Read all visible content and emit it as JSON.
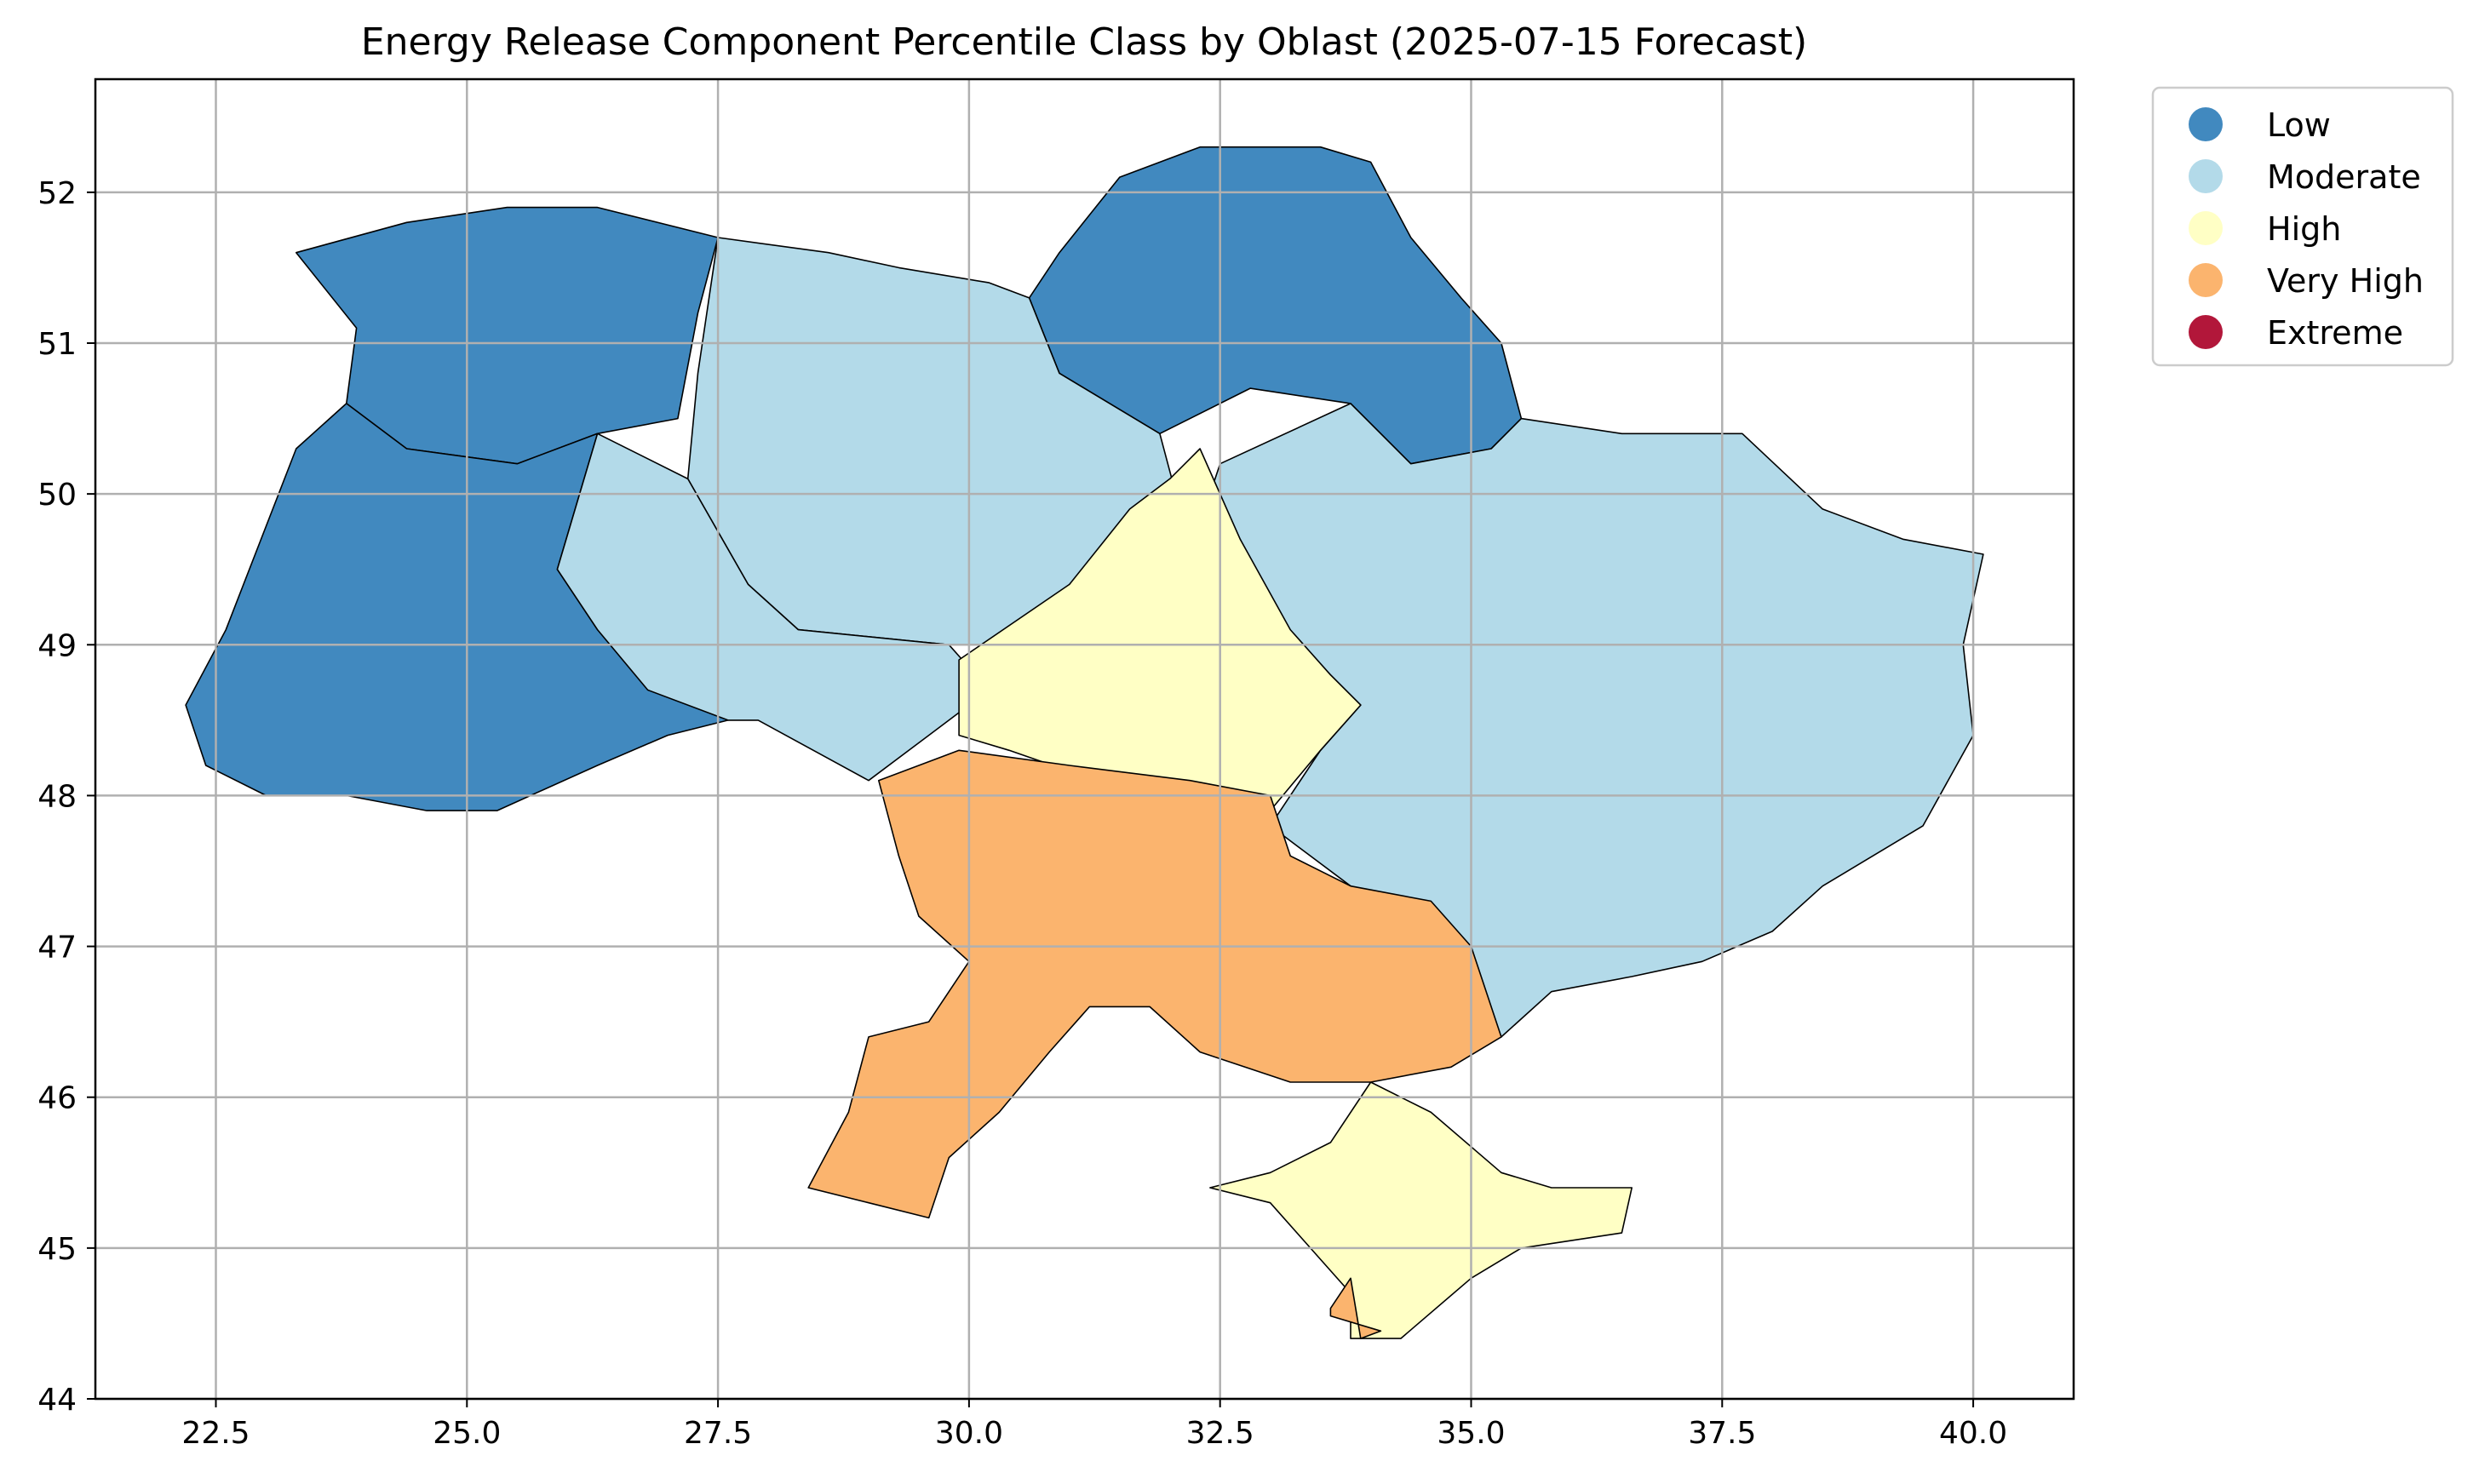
{
  "title": "Energy Release Component Percentile Class by Oblast (2025-07-15 Forecast)",
  "colors": {
    "Low": "#4189bf",
    "Moderate": "#b3dae9",
    "High": "#ffffc5",
    "Very High": "#fbb46e",
    "Extreme": "#b2173a"
  },
  "legend": {
    "placement": "outside-top-right",
    "entries": [
      "Low",
      "Moderate",
      "High",
      "Very High",
      "Extreme"
    ]
  },
  "chart_data": {
    "type": "choropleth",
    "title": "Energy Release Component Percentile Class by Oblast (2025-07-15 Forecast)",
    "xlim": [
      21.3,
      41.0
    ],
    "ylim": [
      44.0,
      52.75
    ],
    "xticks": [
      "22.5",
      "25.0",
      "27.5",
      "30.0",
      "32.5",
      "35.0",
      "37.5",
      "40.0"
    ],
    "yticks": [
      "44",
      "45",
      "46",
      "47",
      "48",
      "49",
      "50",
      "51",
      "52"
    ],
    "grid": true,
    "classes": [
      "Low",
      "Moderate",
      "High",
      "Very High",
      "Extreme"
    ],
    "regions": [
      {
        "class": "Low",
        "coords": [
          [
            23.3,
            51.6
          ],
          [
            24.4,
            51.8
          ],
          [
            25.4,
            51.9
          ],
          [
            26.3,
            51.9
          ],
          [
            27.5,
            51.7
          ],
          [
            27.3,
            51.2
          ],
          [
            27.1,
            50.5
          ],
          [
            26.3,
            50.4
          ],
          [
            25.5,
            50.2
          ],
          [
            24.4,
            50.3
          ],
          [
            23.8,
            50.6
          ],
          [
            23.9,
            51.1
          ]
        ]
      },
      {
        "class": "Low",
        "coords": [
          [
            22.2,
            48.6
          ],
          [
            22.6,
            49.1
          ],
          [
            23.3,
            50.3
          ],
          [
            23.8,
            50.6
          ],
          [
            24.4,
            50.3
          ],
          [
            25.5,
            50.2
          ],
          [
            26.3,
            50.4
          ],
          [
            25.9,
            49.5
          ],
          [
            26.3,
            49.1
          ],
          [
            27.6,
            48.5
          ],
          [
            27.0,
            48.4
          ],
          [
            26.3,
            48.2
          ],
          [
            25.3,
            47.9
          ],
          [
            24.6,
            47.9
          ],
          [
            23.8,
            48.0
          ],
          [
            23.0,
            48.0
          ],
          [
            22.4,
            48.2
          ]
        ]
      },
      {
        "class": "Low",
        "coords": [
          [
            30.6,
            51.3
          ],
          [
            30.9,
            51.6
          ],
          [
            31.5,
            52.1
          ],
          [
            32.3,
            52.3
          ],
          [
            33.5,
            52.3
          ],
          [
            34.0,
            52.2
          ],
          [
            34.4,
            51.7
          ],
          [
            34.9,
            51.3
          ],
          [
            35.3,
            51.0
          ],
          [
            35.5,
            50.5
          ],
          [
            35.2,
            50.3
          ],
          [
            34.4,
            50.2
          ],
          [
            33.8,
            50.6
          ],
          [
            32.8,
            50.7
          ],
          [
            31.9,
            50.4
          ],
          [
            30.9,
            50.8
          ]
        ]
      },
      {
        "class": "Moderate",
        "coords": [
          [
            27.5,
            51.7
          ],
          [
            28.6,
            51.6
          ],
          [
            29.3,
            51.5
          ],
          [
            30.2,
            51.4
          ],
          [
            30.6,
            51.3
          ],
          [
            30.9,
            50.8
          ],
          [
            31.9,
            50.4
          ],
          [
            32.1,
            49.9
          ],
          [
            32.2,
            49.6
          ],
          [
            32.5,
            49.2
          ],
          [
            31.3,
            49.0
          ],
          [
            29.8,
            49.0
          ],
          [
            28.3,
            49.1
          ],
          [
            27.8,
            49.4
          ],
          [
            27.2,
            50.1
          ],
          [
            27.3,
            50.8
          ]
        ]
      },
      {
        "class": "Moderate",
        "coords": [
          [
            26.3,
            50.4
          ],
          [
            27.2,
            50.1
          ],
          [
            27.8,
            49.4
          ],
          [
            28.3,
            49.1
          ],
          [
            29.8,
            49.0
          ],
          [
            30.2,
            48.7
          ],
          [
            29.6,
            48.4
          ],
          [
            29.0,
            48.1
          ],
          [
            27.9,
            48.5
          ],
          [
            27.6,
            48.5
          ],
          [
            26.8,
            48.7
          ],
          [
            26.3,
            49.1
          ],
          [
            25.9,
            49.5
          ]
        ]
      },
      {
        "class": "Moderate",
        "coords": [
          [
            32.5,
            50.2
          ],
          [
            33.8,
            50.6
          ],
          [
            34.4,
            50.2
          ],
          [
            35.2,
            50.3
          ],
          [
            35.5,
            50.5
          ],
          [
            36.5,
            50.4
          ],
          [
            37.7,
            50.4
          ],
          [
            38.5,
            49.9
          ],
          [
            39.3,
            49.7
          ],
          [
            40.1,
            49.6
          ],
          [
            39.9,
            49.0
          ],
          [
            40.0,
            48.4
          ],
          [
            39.5,
            47.8
          ],
          [
            38.5,
            47.4
          ],
          [
            38.0,
            47.1
          ],
          [
            37.3,
            46.9
          ],
          [
            36.6,
            46.8
          ],
          [
            35.8,
            46.7
          ],
          [
            35.3,
            46.4
          ],
          [
            35.0,
            46.9
          ],
          [
            34.2,
            47.2
          ],
          [
            33.8,
            47.4
          ],
          [
            33.0,
            47.8
          ],
          [
            33.5,
            48.3
          ],
          [
            33.9,
            48.6
          ],
          [
            33.0,
            49.2
          ],
          [
            32.5,
            49.2
          ],
          [
            32.2,
            49.6
          ]
        ]
      },
      {
        "class": "High",
        "coords": [
          [
            29.9,
            48.9
          ],
          [
            31.0,
            49.4
          ],
          [
            31.6,
            49.9
          ],
          [
            32.0,
            50.1
          ],
          [
            32.3,
            50.3
          ],
          [
            32.7,
            49.7
          ],
          [
            33.2,
            49.1
          ],
          [
            33.6,
            48.8
          ],
          [
            33.9,
            48.6
          ],
          [
            33.5,
            48.3
          ],
          [
            33.0,
            47.9
          ],
          [
            32.5,
            47.6
          ],
          [
            31.7,
            48.0
          ],
          [
            30.4,
            48.3
          ],
          [
            29.9,
            48.4
          ]
        ]
      },
      {
        "class": "High",
        "coords": [
          [
            32.4,
            45.4
          ],
          [
            33.0,
            45.3
          ],
          [
            33.4,
            45.0
          ],
          [
            33.8,
            44.7
          ],
          [
            33.8,
            44.4
          ],
          [
            34.3,
            44.4
          ],
          [
            35.0,
            44.8
          ],
          [
            35.5,
            45.0
          ],
          [
            36.5,
            45.1
          ],
          [
            36.6,
            45.4
          ],
          [
            35.8,
            45.4
          ],
          [
            35.3,
            45.5
          ],
          [
            34.6,
            45.9
          ],
          [
            34.0,
            46.1
          ],
          [
            33.6,
            45.7
          ],
          [
            33.0,
            45.5
          ]
        ]
      },
      {
        "class": "Very High",
        "coords": [
          [
            29.1,
            48.1
          ],
          [
            29.9,
            48.3
          ],
          [
            31.0,
            48.2
          ],
          [
            32.2,
            48.1
          ],
          [
            33.0,
            48.0
          ],
          [
            33.2,
            47.6
          ],
          [
            33.8,
            47.4
          ],
          [
            34.6,
            47.3
          ],
          [
            35.0,
            47.0
          ],
          [
            35.3,
            46.4
          ],
          [
            34.8,
            46.2
          ],
          [
            34.0,
            46.1
          ],
          [
            33.2,
            46.1
          ],
          [
            32.3,
            46.3
          ],
          [
            31.8,
            46.6
          ],
          [
            31.2,
            46.6
          ],
          [
            30.8,
            46.3
          ],
          [
            30.3,
            45.9
          ],
          [
            29.8,
            45.6
          ],
          [
            29.6,
            45.2
          ],
          [
            29.0,
            45.3
          ],
          [
            28.4,
            45.4
          ],
          [
            28.8,
            45.9
          ],
          [
            29.0,
            46.4
          ],
          [
            29.6,
            46.5
          ],
          [
            30.0,
            46.9
          ],
          [
            29.5,
            47.2
          ],
          [
            29.3,
            47.6
          ]
        ]
      },
      {
        "class": "Very High",
        "coords": [
          [
            33.6,
            44.6
          ],
          [
            33.8,
            44.8
          ],
          [
            33.9,
            44.4
          ],
          [
            34.1,
            44.45
          ],
          [
            33.6,
            44.55
          ]
        ]
      }
    ]
  }
}
